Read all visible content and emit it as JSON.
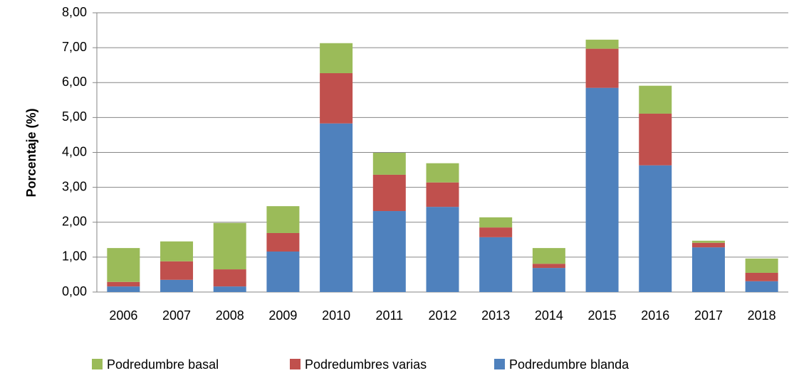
{
  "chart_data": {
    "type": "stacked_bar",
    "ylabel": "Porcentaje (%)",
    "categories": [
      "2006",
      "2007",
      "2008",
      "2009",
      "2010",
      "2011",
      "2012",
      "2013",
      "2014",
      "2015",
      "2016",
      "2017",
      "2018"
    ],
    "series": [
      {
        "name": "Podredumbre basal",
        "color": "#9bbb59",
        "values": [
          0.97,
          0.57,
          1.33,
          0.77,
          0.86,
          0.63,
          0.55,
          0.29,
          0.45,
          0.26,
          0.8,
          0.06,
          0.41
        ]
      },
      {
        "name": "Podredumbres varias",
        "color": "#c0504d",
        "values": [
          0.13,
          0.53,
          0.49,
          0.53,
          1.44,
          1.04,
          0.7,
          0.28,
          0.12,
          1.12,
          1.48,
          0.13,
          0.24
        ]
      },
      {
        "name": "Podredumbre blanda",
        "color": "#4f81bd",
        "values": [
          0.16,
          0.35,
          0.16,
          1.16,
          4.83,
          2.32,
          2.44,
          1.57,
          0.69,
          5.85,
          3.63,
          1.28,
          0.31
        ]
      }
    ],
    "ylim": [
      0,
      8
    ],
    "yticks": [
      {
        "value": 0,
        "label": "0,00"
      },
      {
        "value": 1,
        "label": "1,00"
      },
      {
        "value": 2,
        "label": "2,00"
      },
      {
        "value": 3,
        "label": "3,00"
      },
      {
        "value": 4,
        "label": "4,00"
      },
      {
        "value": 5,
        "label": "5,00"
      },
      {
        "value": 6,
        "label": "6,00"
      },
      {
        "value": 7,
        "label": "7,00"
      },
      {
        "value": 8,
        "label": "8,00"
      }
    ],
    "grid": true
  }
}
